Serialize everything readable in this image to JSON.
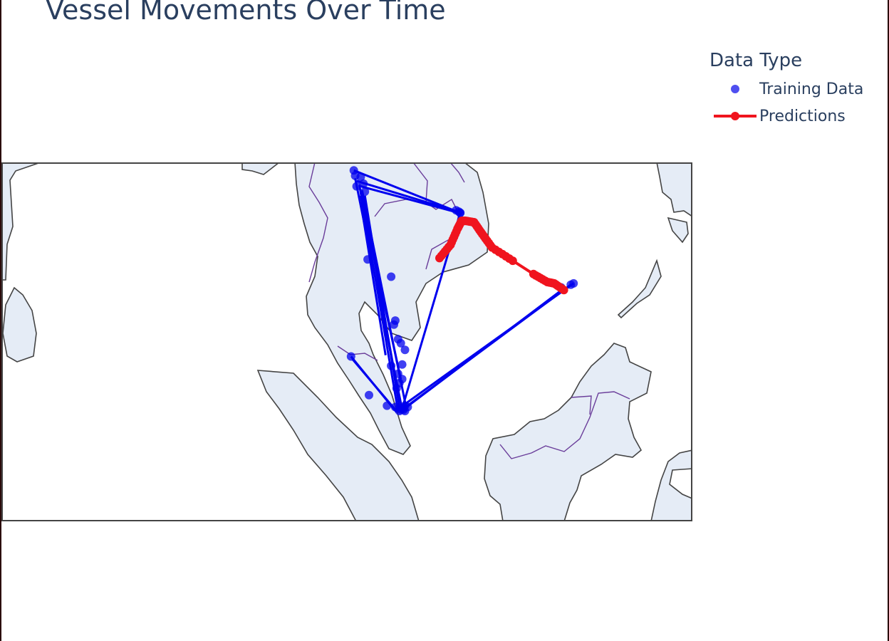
{
  "title": "Vessel Movements Over Time",
  "legend": {
    "title": "Data Type",
    "items": [
      {
        "label": "Training Data",
        "color": "#0000ee",
        "mode": "markers"
      },
      {
        "label": "Predictions",
        "color": "#f0141e",
        "mode": "lines+markers"
      }
    ]
  },
  "map": {
    "land_color": "#e5ecf6",
    "coast_color": "#444444",
    "border_color": "#6a3d9a",
    "lon_range": [
      75,
      125
    ],
    "lat_range": [
      -5,
      22
    ]
  },
  "chart_data": {
    "type": "scattergeo",
    "series": [
      {
        "name": "Training Data",
        "color": "#0000ee",
        "lon": [
          100.5,
          101.0,
          108.2,
          100.6,
          101.2,
          107.9,
          100.7,
          101.3,
          108.1,
          101.5,
          103.2,
          103.5,
          103.9,
          104.2,
          103.7,
          103.8,
          104.0,
          103.2,
          100.3,
          101.6,
          102.9,
          103.8,
          104.1,
          103.9,
          116.2,
          115.5,
          116.4,
          104.2,
          103.8,
          104.4,
          103.6,
          103.4,
          103.7,
          104.0,
          108.2,
          104.1,
          103.5,
          104.2
        ],
        "lat": [
          21.4,
          20.9,
          18.2,
          21.0,
          20.4,
          18.4,
          20.2,
          19.8,
          18.3,
          14.7,
          13.4,
          10.1,
          8.4,
          7.9,
          6.1,
          5.4,
          5.7,
          6.7,
          7.4,
          4.5,
          3.7,
          3.3,
          3.5,
          3.4,
          12.8,
          12.6,
          12.9,
          3.3,
          3.5,
          3.6,
          5.0,
          9.8,
          8.7,
          6.8,
          18.2,
          3.4,
          3.6,
          3.7
        ]
      },
      {
        "name": "Predictions",
        "color": "#f0141e",
        "lon": [
          106.7,
          107.5,
          108.0,
          108.3,
          108.6,
          109.2,
          109.8,
          110.5,
          112.0,
          113.5,
          114.5,
          115.0,
          115.7
        ],
        "lat": [
          14.8,
          15.8,
          17.0,
          17.6,
          17.6,
          17.5,
          16.6,
          15.6,
          14.6,
          13.6,
          13.0,
          12.9,
          12.4
        ]
      }
    ],
    "lines": [
      {
        "color": "#0000ee",
        "segments": [
          [
            [
              100.5,
              21.4
            ],
            [
              108.2,
              18.2
            ]
          ],
          [
            [
              100.7,
              20.6
            ],
            [
              108.0,
              18.3
            ]
          ],
          [
            [
              101.0,
              20.2
            ],
            [
              108.1,
              18.2
            ]
          ],
          [
            [
              100.6,
              20.8
            ],
            [
              104.0,
              3.4
            ]
          ],
          [
            [
              100.9,
              20.3
            ],
            [
              103.7,
              3.3
            ]
          ],
          [
            [
              101.1,
              19.9
            ],
            [
              104.3,
              3.5
            ]
          ],
          [
            [
              101.3,
              19.5
            ],
            [
              103.8,
              3.6
            ]
          ],
          [
            [
              101.1,
              19.8
            ],
            [
              103.4,
              6.4
            ]
          ],
          [
            [
              101.0,
              19.5
            ],
            [
              103.9,
              5.7
            ]
          ],
          [
            [
              101.0,
              19.0
            ],
            [
              102.8,
              7.5
            ]
          ],
          [
            [
              104.0,
              3.5
            ],
            [
              108.2,
              18.2
            ]
          ],
          [
            [
              104.0,
              3.4
            ],
            [
              116.2,
              12.8
            ]
          ],
          [
            [
              104.2,
              3.5
            ],
            [
              115.8,
              12.6
            ]
          ],
          [
            [
              103.9,
              3.6
            ],
            [
              116.4,
              12.9
            ]
          ],
          [
            [
              100.3,
              7.4
            ],
            [
              103.6,
              3.2
            ]
          ],
          [
            [
              100.4,
              7.2
            ],
            [
              103.5,
              3.4
            ]
          ]
        ]
      }
    ],
    "geo": {
      "projection": "equirectangular",
      "lon_range": [
        75,
        125
      ],
      "lat_range": [
        -5,
        22
      ]
    }
  }
}
